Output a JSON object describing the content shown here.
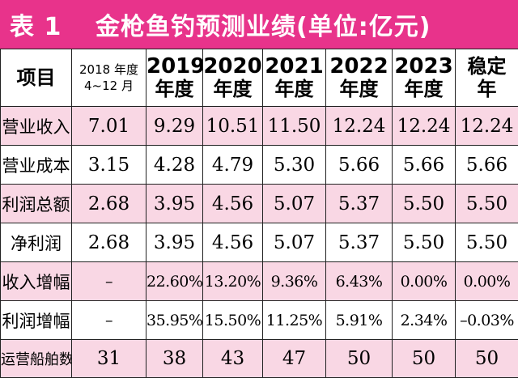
{
  "title": {
    "label": "表 1",
    "text": "金枪鱼钓预测业绩(单位:亿元)"
  },
  "header": {
    "item": "项目",
    "columns": [
      {
        "line1": "2018 年度",
        "line2": "4~12 月"
      },
      {
        "line1": "2019",
        "line2": "年度"
      },
      {
        "line1": "2020",
        "line2": "年度"
      },
      {
        "line1": "2021",
        "line2": "年度"
      },
      {
        "line1": "2022",
        "line2": "年度"
      },
      {
        "line1": "2023",
        "line2": "年度"
      },
      {
        "line1": "稳定",
        "line2": "年"
      }
    ]
  },
  "rows": [
    {
      "label": "营业收入",
      "values": [
        "7.01",
        "9.29",
        "10.51",
        "11.50",
        "12.24",
        "12.24",
        "12.24"
      ]
    },
    {
      "label": "营业成本",
      "values": [
        "3.15",
        "4.28",
        "4.79",
        "5.30",
        "5.66",
        "5.66",
        "5.66"
      ]
    },
    {
      "label": "利润总额",
      "values": [
        "2.68",
        "3.95",
        "4.56",
        "5.07",
        "5.37",
        "5.50",
        "5.50"
      ]
    },
    {
      "label": "净利润",
      "values": [
        "2.68",
        "3.95",
        "4.56",
        "5.07",
        "5.37",
        "5.50",
        "5.50"
      ]
    },
    {
      "label": "收入增幅",
      "values": [
        "–",
        "22.60%",
        "13.20%",
        "9.36%",
        "6.43%",
        "0.00%",
        "0.00%"
      ]
    },
    {
      "label": "利润增幅",
      "values": [
        "–",
        "35.95%",
        "15.50%",
        "11.25%",
        "5.91%",
        "2.34%",
        "–0.03%"
      ]
    },
    {
      "label": "运营船舶数",
      "values": [
        "31",
        "38",
        "43",
        "47",
        "50",
        "50",
        "50"
      ]
    }
  ],
  "colors": {
    "accent": "#e8338b",
    "row_tint": "#f9d7e4"
  }
}
